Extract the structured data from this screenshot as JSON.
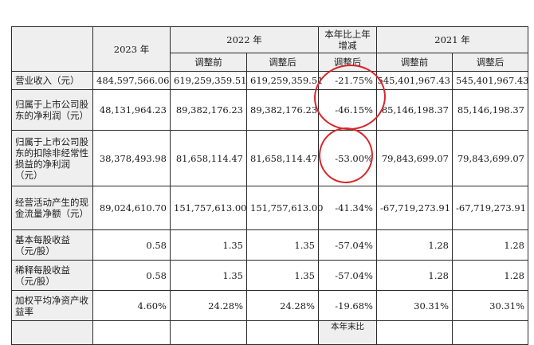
{
  "header": {
    "col_2023": "2023 年",
    "col_2022": "2022 年",
    "col_change": "本年比上年增减",
    "col_2021": "2021 年",
    "sub_before": "调整前",
    "sub_after": "调整后",
    "sub_change_after": "调整后",
    "sub_before_2021": "调整前",
    "sub_after_2021": "调整后"
  },
  "rows": [
    {
      "label": "营业收入（元）",
      "v2023": "484,597,566.06",
      "v2022_before": "619,259,359.51",
      "v2022_after": "619,259,359.51",
      "change": "-21.75%",
      "v2021_before": "545,401,967.43",
      "v2021_after": "545,401,967.43"
    },
    {
      "label": "归属于上市公司股东的净利润（元）",
      "v2023": "48,131,964.23",
      "v2022_before": "89,382,176.23",
      "v2022_after": "89,382,176.23",
      "change": "-46.15%",
      "v2021_before": "85,146,198.37",
      "v2021_after": "85,146,198.37"
    },
    {
      "label": "归属于上市公司股东的扣除非经常性损益的净利润（元）",
      "v2023": "38,378,493.98",
      "v2022_before": "81,658,114.47",
      "v2022_after": "81,658,114.47",
      "change": "-53.00%",
      "v2021_before": "79,843,699.07",
      "v2021_after": "79,843,699.07"
    },
    {
      "label": "经营活动产生的现金流量净额（元）",
      "v2023": "89,024,610.70",
      "v2022_before": "151,757,613.00",
      "v2022_after": "151,757,613.00",
      "change": "-41.34%",
      "v2021_before": "-67,719,273.91",
      "v2021_after": "-67,719,273.91"
    },
    {
      "label": "基本每股收益（元/股）",
      "v2023": "0.58",
      "v2022_before": "1.35",
      "v2022_after": "1.35",
      "change": "-57.04%",
      "v2021_before": "1.28",
      "v2021_after": "1.28"
    },
    {
      "label": "稀释每股收益（元/股）",
      "v2023": "0.58",
      "v2022_before": "1.35",
      "v2022_after": "1.35",
      "change": "-57.04%",
      "v2021_before": "1.28",
      "v2021_after": "1.28"
    },
    {
      "label": "加权平均净资产收益率",
      "v2023": "4.60%",
      "v2022_before": "24.28%",
      "v2022_after": "24.28%",
      "change": "-19.68%",
      "v2021_before": "30.31%",
      "v2021_after": "30.31%"
    }
  ],
  "next_header_fragment": "本年末比",
  "annotation_color": "#d8262b"
}
